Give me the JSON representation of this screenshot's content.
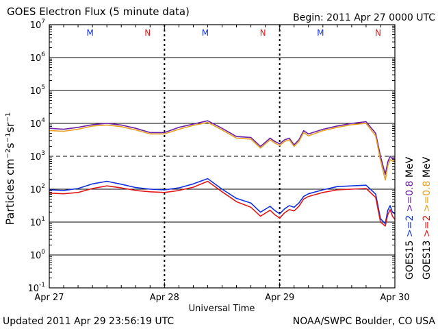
{
  "header": {
    "title": "GOES Electron Flux (5 minute data)",
    "begin": "Begin: 2011 Apr 27 0000 UTC"
  },
  "footer": {
    "updated": "Updated 2011 Apr 29 23:56:19 UTC",
    "credit": "NOAA/SWPC Boulder, CO USA"
  },
  "colors": {
    "goes15_08": "#6a1fa8",
    "goes13_08": "#e8a020",
    "goes15_2": "#1030e0",
    "goes13_2": "#e01818",
    "marker_m": "#1030e0",
    "marker_n": "#e01818"
  },
  "chart_data": {
    "type": "line",
    "ylabel": "Particles cm⁻²s⁻¹sr⁻¹",
    "xlabel": "Universal Time",
    "x_unit": "hours since Apr 27 0000 UTC",
    "xlim": [
      0,
      72
    ],
    "ylim_log10": [
      -1,
      7
    ],
    "x_tick_labels": [
      "Apr 27",
      "Apr 28",
      "Apr 29",
      "Apr 30"
    ],
    "x_tick_positions": [
      0,
      24,
      48,
      72
    ],
    "y_ticks": [
      {
        "base": "10",
        "exp": "-1",
        "value": -1
      },
      {
        "base": "10",
        "exp": "0",
        "value": 0
      },
      {
        "base": "10",
        "exp": "1",
        "value": 1
      },
      {
        "base": "10",
        "exp": "2",
        "value": 2
      },
      {
        "base": "10",
        "exp": "3",
        "value": 3
      },
      {
        "base": "10",
        "exp": "4",
        "value": 4
      },
      {
        "base": "10",
        "exp": "5",
        "value": 5
      },
      {
        "base": "10",
        "exp": "6",
        "value": 6
      },
      {
        "base": "10",
        "exp": "7",
        "value": 7
      }
    ],
    "threshold_log10": 3,
    "markers": [
      {
        "label": "M",
        "x": 8.5,
        "color_key": "marker_m"
      },
      {
        "label": "N",
        "x": 20.5,
        "color_key": "marker_n"
      },
      {
        "label": "M",
        "x": 32.5,
        "color_key": "marker_m"
      },
      {
        "label": "N",
        "x": 44.5,
        "color_key": "marker_n"
      },
      {
        "label": "M",
        "x": 56.5,
        "color_key": "marker_m"
      },
      {
        "label": "N",
        "x": 68.5,
        "color_key": "marker_n"
      }
    ],
    "legend_right": [
      {
        "text": "GOES15",
        "color_key": null
      },
      {
        "text": ">=2",
        "color_key": "goes15_2"
      },
      {
        "text": ">=0.8",
        "color_key": "goes15_08"
      },
      {
        "text": "MeV",
        "color_key": null
      }
    ],
    "legend_far_right": [
      {
        "text": "GOES13",
        "color_key": null
      },
      {
        "text": ">=2",
        "color_key": "goes13_2"
      },
      {
        "text": ">=0.8",
        "color_key": "goes13_08"
      },
      {
        "text": "MeV",
        "color_key": null
      }
    ],
    "series": [
      {
        "name": "GOES15 >=0.8 MeV",
        "color_key": "goes15_08",
        "x": [
          0,
          3,
          6,
          9,
          12,
          15,
          18,
          21,
          24,
          27,
          30,
          33,
          36,
          39,
          42,
          44,
          46,
          47,
          48,
          49,
          50,
          51,
          52,
          53,
          54,
          57,
          60,
          63,
          66,
          68,
          69,
          70,
          70.5,
          71,
          71.5,
          72
        ],
        "y": [
          3.85,
          3.82,
          3.88,
          3.96,
          4.0,
          3.95,
          3.85,
          3.72,
          3.72,
          3.88,
          3.98,
          4.08,
          3.85,
          3.6,
          3.57,
          3.3,
          3.55,
          3.45,
          3.38,
          3.5,
          3.55,
          3.35,
          3.5,
          3.78,
          3.68,
          3.82,
          3.92,
          4.0,
          4.05,
          3.7,
          3.0,
          2.45,
          2.82,
          3.0,
          2.92,
          2.95
        ]
      },
      {
        "name": "GOES13 >=0.8 MeV",
        "color_key": "goes13_08",
        "x": [
          0,
          3,
          6,
          9,
          12,
          15,
          18,
          21,
          24,
          27,
          30,
          33,
          36,
          39,
          42,
          44,
          46,
          47,
          48,
          49,
          50,
          51,
          52,
          53,
          54,
          57,
          60,
          63,
          66,
          68,
          69,
          70,
          70.5,
          71,
          71.5,
          72
        ],
        "y": [
          3.78,
          3.76,
          3.82,
          3.92,
          3.95,
          3.9,
          3.8,
          3.68,
          3.68,
          3.82,
          3.94,
          4.03,
          3.8,
          3.55,
          3.52,
          3.25,
          3.5,
          3.4,
          3.33,
          3.45,
          3.5,
          3.3,
          3.45,
          3.72,
          3.62,
          3.78,
          3.88,
          3.96,
          4.0,
          3.62,
          2.88,
          2.28,
          2.7,
          2.9,
          2.85,
          2.88
        ]
      },
      {
        "name": "GOES15 >=2 MeV",
        "color_key": "goes15_2",
        "x": [
          0,
          3,
          6,
          9,
          12,
          15,
          18,
          21,
          24,
          27,
          30,
          33,
          36,
          39,
          42,
          44,
          46,
          47,
          48,
          49,
          50,
          51,
          52,
          53,
          54,
          57,
          60,
          63,
          66,
          68,
          69,
          70,
          70.5,
          71,
          71.5,
          72
        ],
        "y": [
          1.98,
          1.96,
          2.02,
          2.16,
          2.24,
          2.15,
          2.05,
          2.0,
          1.98,
          2.04,
          2.16,
          2.32,
          2.0,
          1.72,
          1.58,
          1.3,
          1.48,
          1.35,
          1.25,
          1.4,
          1.5,
          1.45,
          1.58,
          1.78,
          1.86,
          1.98,
          2.08,
          2.1,
          2.12,
          1.85,
          1.1,
          0.95,
          1.35,
          1.5,
          1.3,
          1.25
        ]
      },
      {
        "name": "GOES13 >=2 MeV",
        "color_key": "goes13_2",
        "x": [
          0,
          3,
          6,
          9,
          12,
          15,
          18,
          21,
          24,
          27,
          30,
          33,
          36,
          39,
          42,
          44,
          46,
          47,
          48,
          49,
          50,
          51,
          52,
          53,
          54,
          57,
          60,
          63,
          66,
          68,
          69,
          70,
          70.5,
          71,
          71.5,
          72
        ],
        "y": [
          1.88,
          1.86,
          1.9,
          2.02,
          2.1,
          2.04,
          1.96,
          1.92,
          1.9,
          1.96,
          2.06,
          2.24,
          1.92,
          1.62,
          1.45,
          1.18,
          1.36,
          1.22,
          1.12,
          1.28,
          1.38,
          1.34,
          1.48,
          1.7,
          1.78,
          1.9,
          1.98,
          2.0,
          2.02,
          1.75,
          1.0,
          0.88,
          1.22,
          1.38,
          1.18,
          1.08
        ]
      }
    ]
  }
}
